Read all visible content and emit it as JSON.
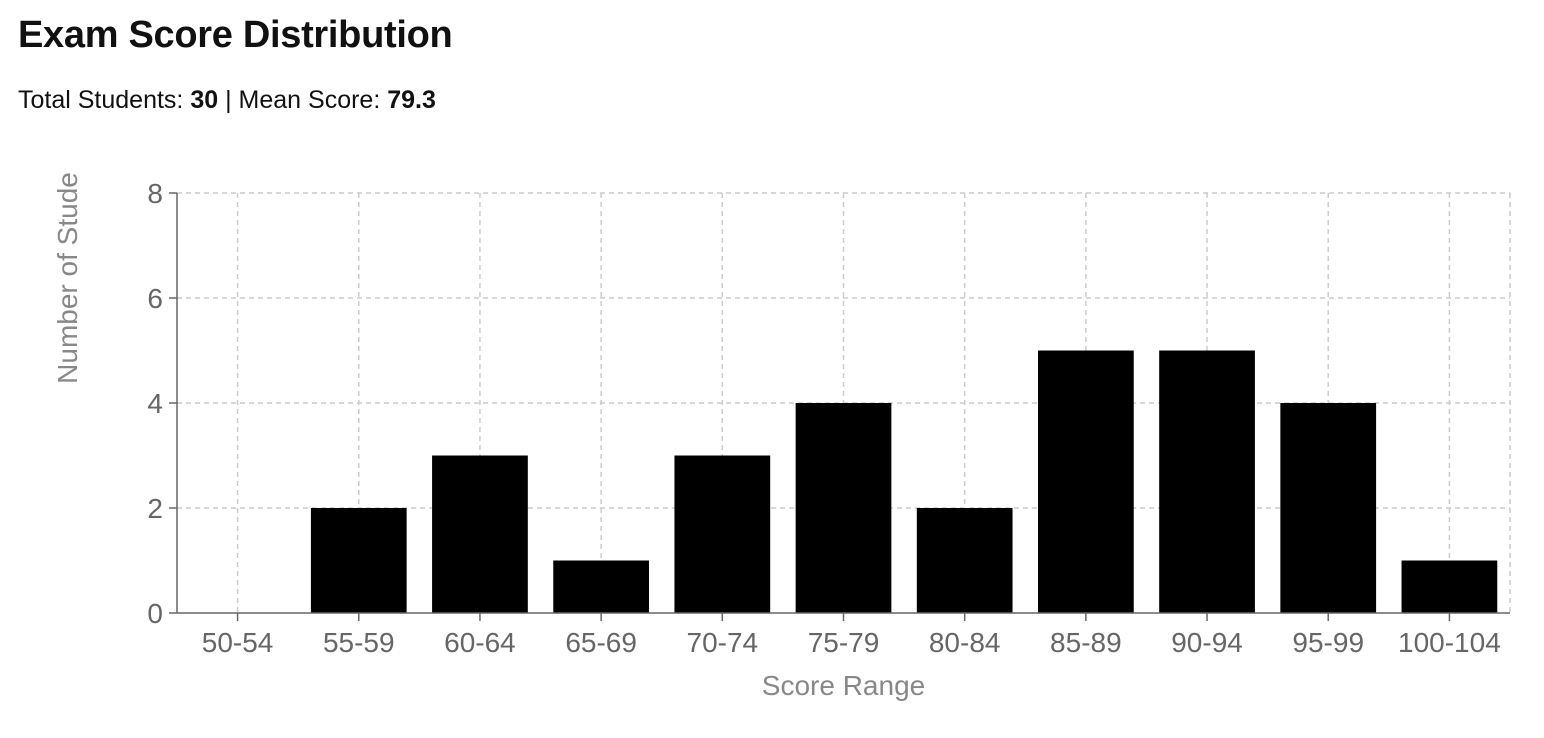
{
  "header": {
    "title": "Exam Score Distribution",
    "total_label": "Total Students: ",
    "total_value": "30",
    "separator": " | ",
    "mean_label": "Mean Score: ",
    "mean_value": "79.3"
  },
  "chart_data": {
    "type": "bar",
    "title": "Exam Score Distribution",
    "xlabel": "Score Range",
    "ylabel": "Number of Stude",
    "categories": [
      "50-54",
      "55-59",
      "60-64",
      "65-69",
      "70-74",
      "75-79",
      "80-84",
      "85-89",
      "90-94",
      "95-99",
      "100-104"
    ],
    "values": [
      0,
      2,
      3,
      1,
      3,
      4,
      2,
      5,
      5,
      4,
      1
    ],
    "ylim": [
      0,
      8
    ],
    "yticks": [
      0,
      2,
      4,
      6,
      8
    ],
    "grid": true,
    "bar_color": "#000000",
    "grid_color": "#cccccc",
    "axis_color": "#666666"
  }
}
